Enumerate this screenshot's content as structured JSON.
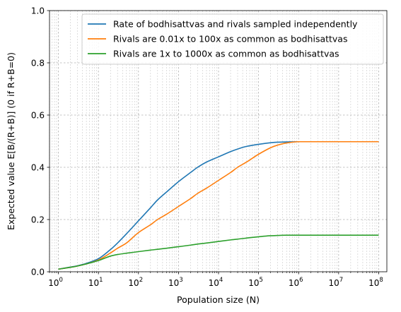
{
  "chart_data": {
    "type": "line",
    "xlabel": "Population size (N)",
    "ylabel": "Expected value  E[B/(R+B)]  (0 if R+B=0)",
    "xscale": "log",
    "xlim": [
      0.6,
      160000000.0
    ],
    "ylim": [
      0,
      1
    ],
    "xticks": [
      {
        "value": 1,
        "base": "10",
        "exp": "0"
      },
      {
        "value": 10,
        "base": "10",
        "exp": "1"
      },
      {
        "value": 100,
        "base": "10",
        "exp": "2"
      },
      {
        "value": 1000,
        "base": "10",
        "exp": "3"
      },
      {
        "value": 10000,
        "base": "10",
        "exp": "4"
      },
      {
        "value": 100000,
        "base": "10",
        "exp": "5"
      },
      {
        "value": 1000000,
        "base": "10",
        "exp": "6"
      },
      {
        "value": 10000000,
        "base": "10",
        "exp": "7"
      },
      {
        "value": 100000000,
        "base": "10",
        "exp": "8"
      }
    ],
    "yticks": [
      "0.0",
      "0.2",
      "0.4",
      "0.6",
      "0.8",
      "1.0"
    ],
    "grid": "both (major and minor), dashed",
    "legend_position": "top-right",
    "series": [
      {
        "name": "Rate of bodhisattvas and rivals sampled independently",
        "color": "#1f77b4",
        "x": [
          1,
          2,
          3,
          5,
          10,
          20,
          30,
          50,
          100,
          200,
          300,
          500,
          1000,
          2000,
          3000,
          5000,
          10000,
          20000,
          30000,
          50000,
          100000,
          200000,
          300000,
          500000,
          1000000,
          3000000,
          10000000,
          100000000
        ],
        "y": [
          0.01,
          0.018,
          0.023,
          0.032,
          0.05,
          0.085,
          0.11,
          0.145,
          0.195,
          0.245,
          0.275,
          0.305,
          0.345,
          0.38,
          0.4,
          0.42,
          0.44,
          0.46,
          0.47,
          0.48,
          0.488,
          0.494,
          0.496,
          0.497,
          0.498,
          0.498,
          0.498,
          0.498
        ]
      },
      {
        "name": "Rivals are 0.01x to 100x as common as bodhisattvas",
        "color": "#ff7f0e",
        "x": [
          1,
          2,
          3,
          5,
          10,
          20,
          30,
          50,
          100,
          200,
          300,
          500,
          1000,
          2000,
          3000,
          5000,
          10000,
          20000,
          30000,
          50000,
          100000,
          200000,
          300000,
          500000,
          1000000,
          3000000,
          10000000,
          100000000
        ],
        "y": [
          0.01,
          0.017,
          0.022,
          0.03,
          0.045,
          0.072,
          0.09,
          0.11,
          0.15,
          0.18,
          0.2,
          0.22,
          0.25,
          0.28,
          0.3,
          0.32,
          0.35,
          0.38,
          0.4,
          0.42,
          0.45,
          0.475,
          0.485,
          0.493,
          0.498,
          0.498,
          0.498,
          0.498
        ]
      },
      {
        "name": "Rivals are 1x to 1000x as common as bodhisattvas",
        "color": "#2ca02c",
        "x": [
          1,
          2,
          3,
          5,
          10,
          20,
          30,
          50,
          100,
          200,
          300,
          500,
          1000,
          2000,
          3000,
          5000,
          10000,
          20000,
          30000,
          50000,
          100000,
          200000,
          300000,
          500000,
          1000000,
          3000000,
          10000000,
          100000000
        ],
        "y": [
          0.01,
          0.017,
          0.022,
          0.03,
          0.043,
          0.06,
          0.066,
          0.071,
          0.077,
          0.083,
          0.086,
          0.09,
          0.096,
          0.102,
          0.106,
          0.11,
          0.116,
          0.122,
          0.125,
          0.129,
          0.134,
          0.138,
          0.139,
          0.14,
          0.14,
          0.14,
          0.14,
          0.14
        ]
      }
    ]
  }
}
